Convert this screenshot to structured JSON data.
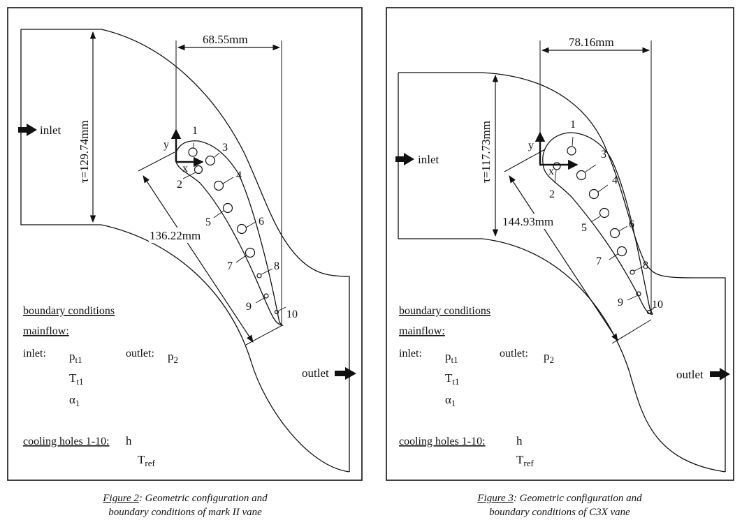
{
  "figures": [
    {
      "id": "mark2",
      "dims": {
        "pitch": "τ=129.74mm",
        "axial": "68.55mm",
        "chord": "136.22mm"
      },
      "axes": {
        "x": "x",
        "y": "y"
      },
      "holes": [
        "1",
        "2",
        "3",
        "4",
        "5",
        "6",
        "7",
        "8",
        "9",
        "10"
      ],
      "flow": {
        "inlet": "inlet",
        "outlet": "outlet"
      },
      "bc": {
        "heading": "boundary conditions",
        "mainflow": "mainflow:",
        "inlet_label": "inlet:",
        "outlet_label": "outlet:",
        "pt1": "p",
        "pt1_sub": "t1",
        "p2": "p",
        "p2_sub": "2",
        "tt1": "T",
        "tt1_sub": "t1",
        "alpha": "α",
        "alpha_sub": "1",
        "cooling": "cooling holes 1-10:",
        "h": "h",
        "tref": "T",
        "tref_sub": "ref"
      },
      "caption": {
        "fig": "Figure 2",
        "rest": ": Geometric configuration and",
        "line2": "boundary conditions of mark II vane"
      }
    },
    {
      "id": "c3x",
      "dims": {
        "pitch": "τ=117.73mm",
        "axial": "78.16mm",
        "chord": "144.93mm"
      },
      "axes": {
        "x": "x",
        "y": "y"
      },
      "holes": [
        "1",
        "2",
        "3",
        "4",
        "5",
        "6",
        "7",
        "8",
        "9",
        "10"
      ],
      "flow": {
        "inlet": "inlet",
        "outlet": "outlet"
      },
      "bc": {
        "heading": "boundary conditions",
        "mainflow": "mainflow:",
        "inlet_label": "inlet:",
        "outlet_label": "outlet:",
        "pt1": "p",
        "pt1_sub": "t1",
        "p2": "p",
        "p2_sub": "2",
        "tt1": "T",
        "tt1_sub": "t1",
        "alpha": "α",
        "alpha_sub": "1",
        "cooling": "cooling holes 1-10:",
        "h": "h",
        "tref": "T",
        "tref_sub": "ref"
      },
      "caption": {
        "fig": "Figure 3",
        "rest": ": Geometric configuration and",
        "line2": "boundary conditions of C3X vane"
      }
    }
  ]
}
